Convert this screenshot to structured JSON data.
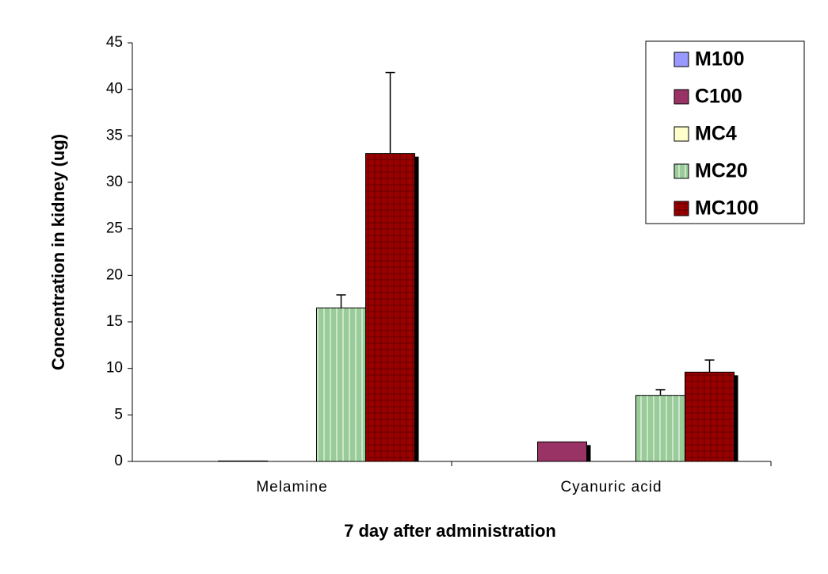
{
  "chart_data": {
    "type": "bar",
    "y_label": "Concentration in kidney (ug)",
    "x_label": "7 day after administration",
    "categories": [
      "Melamine",
      "Cyanuric acid"
    ],
    "series": [
      {
        "name": "M100",
        "color": "#9999ff",
        "pattern": "solid",
        "values": [
          0,
          0
        ],
        "errors": [
          null,
          null
        ]
      },
      {
        "name": "C100",
        "color": "#993366",
        "pattern": "solid",
        "values": [
          0.05,
          2.1
        ],
        "errors": [
          null,
          null
        ]
      },
      {
        "name": "MC4",
        "color": "#ffffcc",
        "pattern": "solid",
        "values": [
          0,
          0
        ],
        "errors": [
          null,
          null
        ]
      },
      {
        "name": "MC20",
        "color": "#99cc99",
        "pattern": "vertical-lines",
        "values": [
          16.5,
          7.1
        ],
        "errors": [
          1.4,
          0.6
        ]
      },
      {
        "name": "MC100",
        "color": "#990000",
        "pattern": "grid",
        "values": [
          33.1,
          9.6
        ],
        "errors": [
          8.7,
          1.3
        ]
      }
    ],
    "ylim": [
      0,
      45
    ],
    "yticks": [
      0,
      5,
      10,
      15,
      20,
      25,
      30,
      35,
      40,
      45
    ],
    "legend": "upper right",
    "grid": false
  }
}
